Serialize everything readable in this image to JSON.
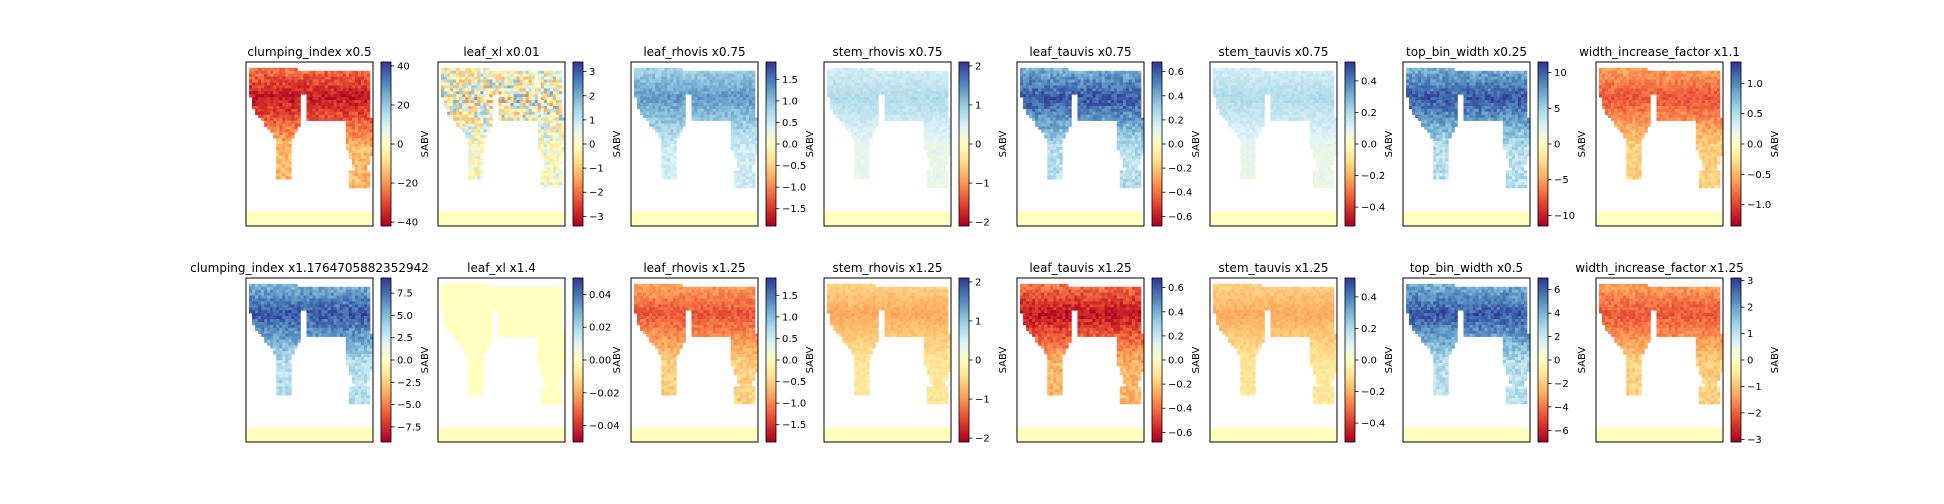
{
  "chart_data": [
    {
      "type": "heatmap",
      "title": "clumping_index x0.5",
      "colorbar_label": "SABV",
      "ticks": [
        40,
        20,
        0,
        -20,
        -40
      ],
      "tick_labels": [
        "40",
        "20",
        "0",
        "−20",
        "−40"
      ],
      "range": [
        -42,
        42
      ],
      "pattern": "neg_strong"
    },
    {
      "type": "heatmap",
      "title": "leaf_xl x0.01",
      "colorbar_label": "SABV",
      "ticks": [
        3,
        2,
        1,
        0,
        -1,
        -2,
        -3
      ],
      "tick_labels": [
        "3",
        "2",
        "1",
        "0",
        "−1",
        "−2",
        "−3"
      ],
      "range": [
        -3.4,
        3.4
      ],
      "pattern": "mixed"
    },
    {
      "type": "heatmap",
      "title": "leaf_rhovis x0.75",
      "colorbar_label": "SABV",
      "ticks": [
        1.5,
        1.0,
        0.5,
        0.0,
        -0.5,
        -1.0,
        -1.5
      ],
      "tick_labels": [
        "1.5",
        "1.0",
        "0.5",
        "0.0",
        "−0.5",
        "−1.0",
        "−1.5"
      ],
      "range": [
        -1.9,
        1.9
      ],
      "pattern": "pos_moderate"
    },
    {
      "type": "heatmap",
      "title": "stem_rhovis x0.75",
      "colorbar_label": "SABV",
      "ticks": [
        2,
        1,
        0,
        -1,
        -2
      ],
      "tick_labels": [
        "2",
        "1",
        "0",
        "−1",
        "−2"
      ],
      "range": [
        -2.1,
        2.1
      ],
      "pattern": "pos_weak"
    },
    {
      "type": "heatmap",
      "title": "leaf_tauvis x0.75",
      "colorbar_label": "SABV",
      "ticks": [
        0.6,
        0.4,
        0.2,
        0.0,
        -0.2,
        -0.4,
        -0.6
      ],
      "tick_labels": [
        "0.6",
        "0.4",
        "0.2",
        "0.0",
        "−0.2",
        "−0.4",
        "−0.6"
      ],
      "range": [
        -0.68,
        0.68
      ],
      "pattern": "pos_strong"
    },
    {
      "type": "heatmap",
      "title": "stem_tauvis x0.75",
      "colorbar_label": "SABV",
      "ticks": [
        0.4,
        0.2,
        0.0,
        -0.2,
        -0.4
      ],
      "tick_labels": [
        "0.4",
        "0.2",
        "0.0",
        "−0.2",
        "−0.4"
      ],
      "range": [
        -0.52,
        0.52
      ],
      "pattern": "pos_weak"
    },
    {
      "type": "heatmap",
      "title": "top_bin_width x0.25",
      "colorbar_label": "SABV",
      "ticks": [
        10,
        5,
        0,
        -5,
        -10
      ],
      "tick_labels": [
        "10",
        "5",
        "0",
        "−5",
        "−10"
      ],
      "range": [
        -11.5,
        11.5
      ],
      "pattern": "pos_strong"
    },
    {
      "type": "heatmap",
      "title": "width_increase_factor x1.1",
      "colorbar_label": "SABV",
      "ticks": [
        1.0,
        0.5,
        0.0,
        -0.5,
        -1.0
      ],
      "tick_labels": [
        "1.0",
        "0.5",
        "0.0",
        "−0.5",
        "−1.0"
      ],
      "range": [
        -1.35,
        1.35
      ],
      "pattern": "neg_moderate"
    },
    {
      "type": "heatmap",
      "title": "clumping_index x1.1764705882352942",
      "colorbar_label": "SABV",
      "ticks": [
        7.5,
        5.0,
        2.5,
        0.0,
        -2.5,
        -5.0,
        -7.5
      ],
      "tick_labels": [
        "7.5",
        "5.0",
        "2.5",
        "0.0",
        "−2.5",
        "−5.0",
        "−7.5"
      ],
      "range": [
        -9.2,
        9.2
      ],
      "pattern": "pos_strong"
    },
    {
      "type": "heatmap",
      "title": "leaf_xl x1.4",
      "colorbar_label": "SABV",
      "ticks": [
        0.04,
        0.02,
        0.0,
        -0.02,
        -0.04
      ],
      "tick_labels": [
        "0.04",
        "0.02",
        "0.00",
        "−0.02",
        "−0.04"
      ],
      "range": [
        -0.05,
        0.05
      ],
      "pattern": "zero"
    },
    {
      "type": "heatmap",
      "title": "leaf_rhovis x1.25",
      "colorbar_label": "SABV",
      "ticks": [
        1.5,
        1.0,
        0.5,
        0.0,
        -0.5,
        -1.0,
        -1.5
      ],
      "tick_labels": [
        "1.5",
        "1.0",
        "0.5",
        "0.0",
        "−0.5",
        "−1.0",
        "−1.5"
      ],
      "range": [
        -1.9,
        1.9
      ],
      "pattern": "neg_moderate"
    },
    {
      "type": "heatmap",
      "title": "stem_rhovis x1.25",
      "colorbar_label": "SABV",
      "ticks": [
        2,
        1,
        0,
        -1,
        -2
      ],
      "tick_labels": [
        "2",
        "1",
        "0",
        "−1",
        "−2"
      ],
      "range": [
        -2.1,
        2.1
      ],
      "pattern": "neg_weak"
    },
    {
      "type": "heatmap",
      "title": "leaf_tauvis x1.25",
      "colorbar_label": "SABV",
      "ticks": [
        0.6,
        0.4,
        0.2,
        0.0,
        -0.2,
        -0.4,
        -0.6
      ],
      "tick_labels": [
        "0.6",
        "0.4",
        "0.2",
        "0.0",
        "−0.2",
        "−0.4",
        "−0.6"
      ],
      "range": [
        -0.68,
        0.68
      ],
      "pattern": "neg_strong"
    },
    {
      "type": "heatmap",
      "title": "stem_tauvis x1.25",
      "colorbar_label": "SABV",
      "ticks": [
        0.4,
        0.2,
        0.0,
        -0.2,
        -0.4
      ],
      "tick_labels": [
        "0.4",
        "0.2",
        "0.0",
        "−0.2",
        "−0.4"
      ],
      "range": [
        -0.52,
        0.52
      ],
      "pattern": "neg_weak"
    },
    {
      "type": "heatmap",
      "title": "top_bin_width x0.5",
      "colorbar_label": "SABV",
      "ticks": [
        6,
        4,
        2,
        0,
        -2,
        -4,
        -6
      ],
      "tick_labels": [
        "6",
        "4",
        "2",
        "0",
        "−2",
        "−4",
        "−6"
      ],
      "range": [
        -7,
        7
      ],
      "pattern": "pos_strong"
    },
    {
      "type": "heatmap",
      "title": "width_increase_factor x1.25",
      "colorbar_label": "SABV",
      "ticks": [
        3,
        2,
        1,
        0,
        -1,
        -2,
        -3
      ],
      "tick_labels": [
        "3",
        "2",
        "1",
        "0",
        "−1",
        "−2",
        "−3"
      ],
      "range": [
        -3.1,
        3.1
      ],
      "pattern": "neg_moderate"
    }
  ]
}
